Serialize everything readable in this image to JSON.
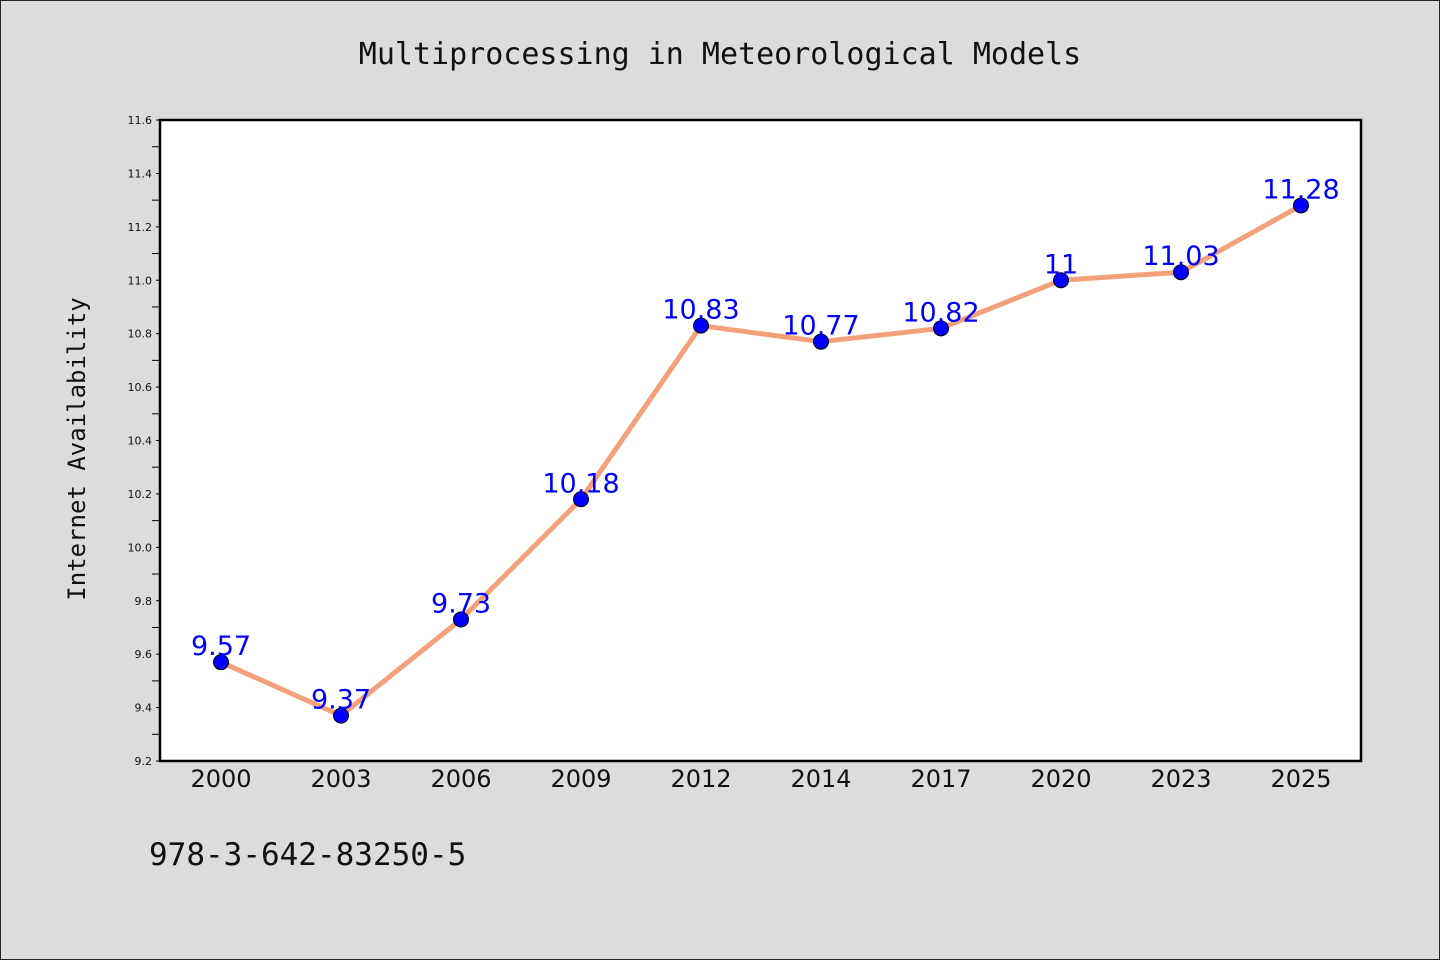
{
  "chart_data": {
    "type": "line",
    "title": "Multiprocessing in Meteorological Models",
    "xlabel": "",
    "ylabel": "Internet Availability",
    "categories": [
      "2000",
      "2003",
      "2006",
      "2009",
      "2012",
      "2014",
      "2017",
      "2020",
      "2023",
      "2025"
    ],
    "series": [
      {
        "values": [
          9.57,
          9.37,
          9.73,
          10.18,
          10.83,
          10.77,
          10.82,
          11,
          11.03,
          11.28
        ],
        "data_labels": [
          "9.57",
          "9.37",
          "9.73",
          "10.18",
          "10.83",
          "10.77",
          "10.82",
          "11",
          "11.03",
          "11.28"
        ],
        "line_color": "#f4a07a",
        "marker_color": "#0000ff"
      }
    ],
    "ylim": [
      9.2,
      11.6
    ],
    "yticks": [
      9.2,
      9.4,
      9.6,
      9.8,
      10.0,
      10.2,
      10.4,
      10.6,
      10.8,
      11.0,
      11.2,
      11.4,
      11.6
    ],
    "ytick_labels": [
      "9.2",
      "9.4",
      "9.6",
      "9.8",
      "10.0",
      "10.2",
      "10.4",
      "10.6",
      "10.8",
      "11.0",
      "11.2",
      "11.4",
      "11.6"
    ],
    "grid": false,
    "legend": "none",
    "label_color": "#0000ff",
    "background_color": "#dcdcdc",
    "plot_background_color": "#ffffff"
  },
  "footer": {
    "text": "978-3-642-83250-5"
  }
}
